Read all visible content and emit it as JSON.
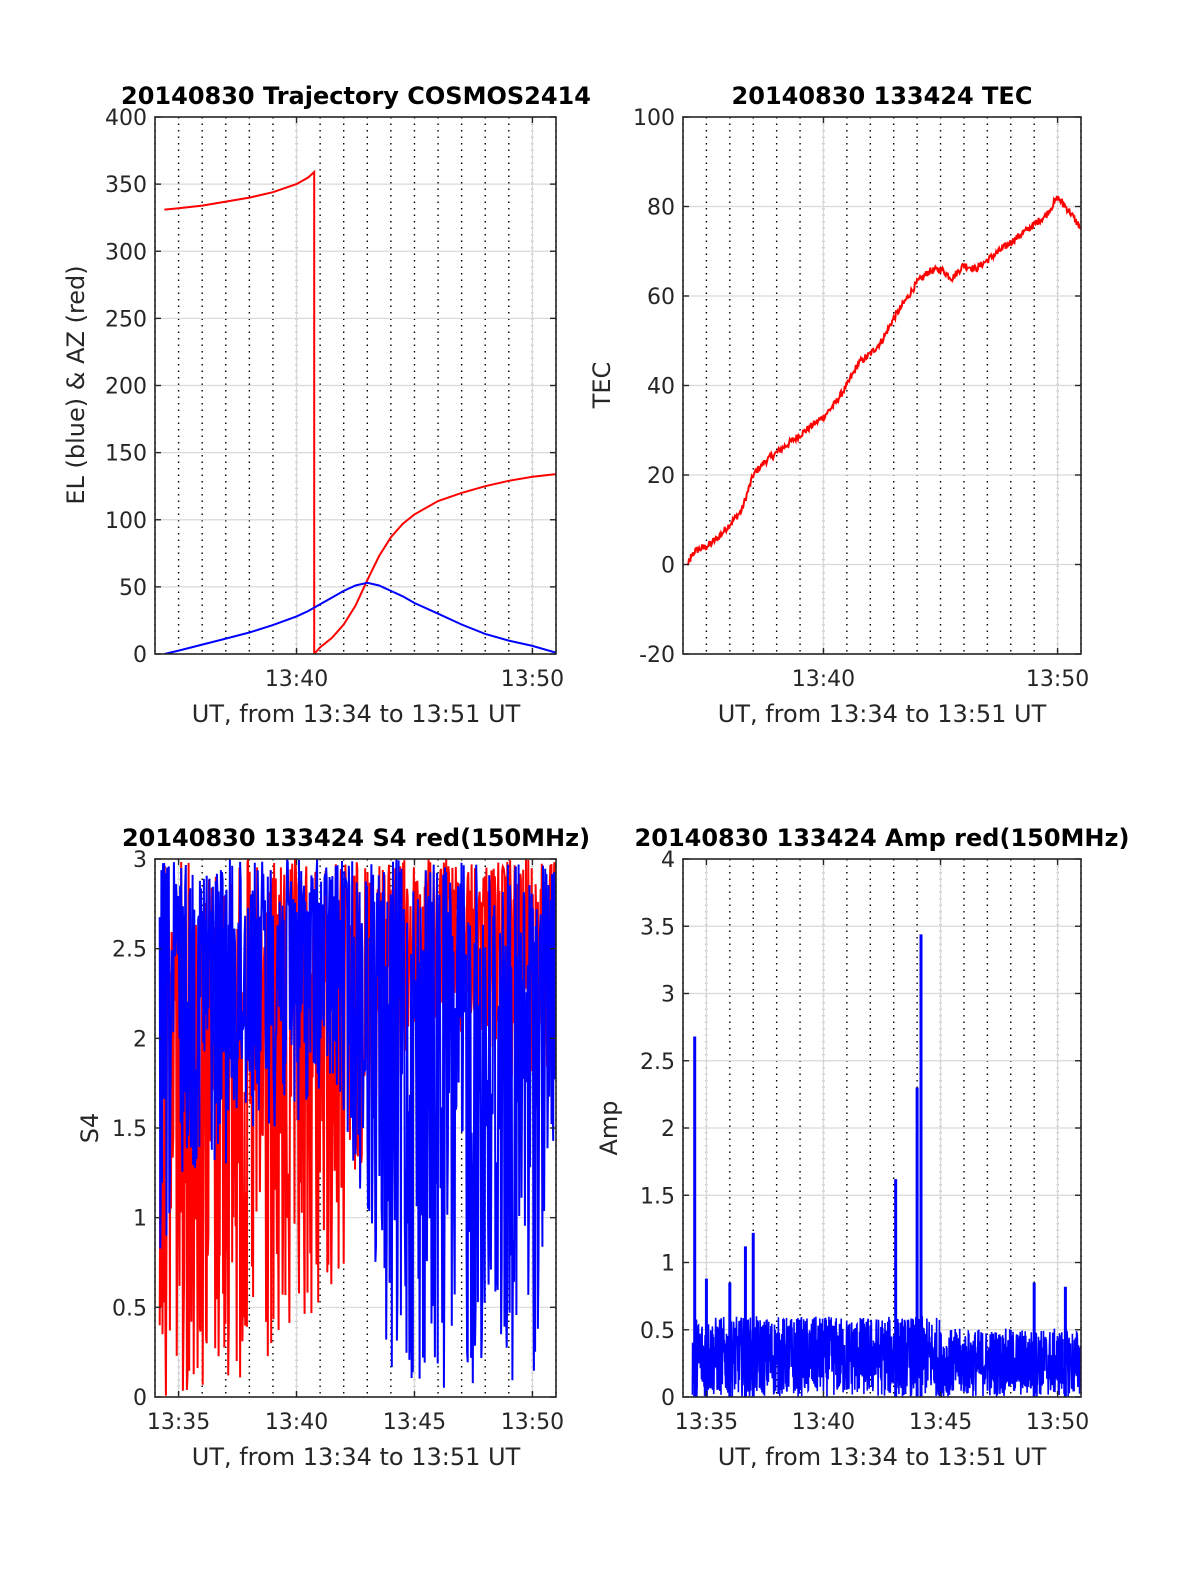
{
  "figure": {
    "background": "#ffffff",
    "colors": {
      "red": "#ff0000",
      "blue": "#0000ff",
      "grid": "#d9d9d9",
      "axis": "#262626"
    }
  },
  "chart_data": [
    {
      "id": "trajectory",
      "type": "line",
      "title": "20140830 Trajectory COSMOS2414",
      "xlabel": "UT, from 13:34 to 13:51 UT",
      "ylabel": "EL (blue) & AZ (red)",
      "xlim": [
        "13:34",
        "13:51"
      ],
      "ylim": [
        0,
        400
      ],
      "xticks": [
        "13:40",
        "13:50"
      ],
      "yticks": [
        0,
        50,
        100,
        150,
        200,
        250,
        300,
        350,
        400
      ],
      "grid": true,
      "x_minor_dotted_grid_min": 1,
      "series": [
        {
          "color": "#ff0000",
          "x": [
            "13:34:24",
            "13:35",
            "13:36",
            "13:37",
            "13:38",
            "13:39",
            "13:40",
            "13:40:30",
            "13:40:45",
            "13:40:45",
            "13:41",
            "13:41:30",
            "13:42",
            "13:42:30",
            "13:43",
            "13:43:30",
            "13:44",
            "13:44:30",
            "13:45",
            "13:46",
            "13:47",
            "13:48",
            "13:49",
            "13:50",
            "13:51"
          ],
          "y": [
            331,
            332,
            334,
            337,
            340,
            344,
            350,
            355,
            359,
            0,
            5,
            12,
            22,
            36,
            55,
            73,
            87,
            97,
            104,
            114,
            120,
            125,
            129,
            132,
            134
          ]
        },
        {
          "color": "#0000ff",
          "x": [
            "13:34:24",
            "13:35",
            "13:36",
            "13:37",
            "13:38",
            "13:39",
            "13:40",
            "13:40:30",
            "13:41",
            "13:41:30",
            "13:42",
            "13:42:30",
            "13:43",
            "13:43:30",
            "13:44",
            "13:44:30",
            "13:45",
            "13:46",
            "13:47",
            "13:48",
            "13:49",
            "13:50",
            "13:51"
          ],
          "y": [
            0,
            2.5,
            7,
            11.5,
            16,
            21.5,
            28,
            32,
            37,
            42,
            47,
            51,
            53,
            51,
            47,
            43,
            38,
            30,
            22,
            15,
            10,
            6,
            1
          ]
        }
      ]
    },
    {
      "id": "tec",
      "type": "line",
      "title": "20140830 133424 TEC",
      "xlabel": "UT, from 13:34 to 13:51 UT",
      "ylabel": "TEC",
      "xlim": [
        "13:34",
        "13:51"
      ],
      "ylim": [
        -20,
        100
      ],
      "xticks": [
        "13:40",
        "13:50"
      ],
      "yticks": [
        -20,
        0,
        20,
        40,
        60,
        80,
        100
      ],
      "grid": true,
      "x_minor_dotted_grid_min": 1,
      "series": [
        {
          "color": "#ff0000",
          "x": [
            "13:34:12",
            "13:34:30",
            "13:35",
            "13:35:30",
            "13:36",
            "13:36:30",
            "13:37",
            "13:37:30",
            "13:38",
            "13:38:30",
            "13:39",
            "13:39:30",
            "13:40",
            "13:40:30",
            "13:41",
            "13:41:30",
            "13:42",
            "13:42:30",
            "13:43",
            "13:43:30",
            "13:44",
            "13:44:30",
            "13:45",
            "13:45:30",
            "13:46",
            "13:46:30",
            "13:47",
            "13:47:30",
            "13:48",
            "13:48:30",
            "13:49",
            "13:49:30",
            "13:50",
            "13:50:30",
            "13:51"
          ],
          "y": [
            0,
            3,
            4,
            6,
            9,
            12,
            20,
            23,
            25,
            27,
            29,
            31,
            33,
            36,
            40,
            45,
            47,
            50,
            55,
            59,
            63,
            65.5,
            66,
            64,
            67,
            66,
            68,
            70,
            72,
            74,
            76,
            78,
            82,
            79,
            75
          ]
        }
      ]
    },
    {
      "id": "s4",
      "type": "line",
      "title": "20140830 133424 S4 red(150MHz)",
      "xlabel": "UT, from 13:34 to 13:51 UT",
      "ylabel": "S4",
      "xlim": [
        "13:34",
        "13:51"
      ],
      "ylim": [
        0,
        3
      ],
      "xticks": [
        "13:35",
        "13:40",
        "13:45",
        "13:50"
      ],
      "yticks": [
        0,
        0.5,
        1,
        1.5,
        2,
        2.5,
        3
      ],
      "grid": true,
      "x_minor_dotted_grid_min": 1,
      "series": [
        {
          "color": "#ff0000",
          "x": [
            "13:34:12",
            "13:35",
            "13:36",
            "13:37",
            "13:38",
            "13:39",
            "13:40",
            "13:41",
            "13:42",
            "13:43",
            "13:44",
            "13:45",
            "13:46",
            "13:47",
            "13:48",
            "13:49",
            "13:50",
            "13:51"
          ],
          "y_range": [
            [
              0,
              3
            ],
            [
              0,
              3
            ],
            [
              0,
              3
            ],
            [
              0,
              3
            ],
            [
              0,
              3
            ],
            [
              0,
              3
            ],
            [
              0,
              3
            ],
            [
              0.5,
              3
            ],
            [
              0.5,
              3
            ],
            [
              1.5,
              3
            ],
            [
              1.5,
              3
            ],
            [
              2,
              3
            ],
            [
              2,
              3
            ],
            [
              2,
              3
            ],
            [
              2,
              3
            ],
            [
              1.7,
              3
            ],
            [
              1.7,
              3
            ],
            [
              1.7,
              3
            ]
          ]
        },
        {
          "color": "#0000ff",
          "x": [
            "13:34:12",
            "13:35",
            "13:36",
            "13:37",
            "13:38",
            "13:39",
            "13:40",
            "13:41",
            "13:42",
            "13:43",
            "13:44",
            "13:45",
            "13:46",
            "13:47",
            "13:48",
            "13:49",
            "13:50",
            "13:51"
          ],
          "y_range": [
            [
              0.5,
              3
            ],
            [
              1.2,
              3
            ],
            [
              1.3,
              3
            ],
            [
              1.3,
              3
            ],
            [
              1.5,
              3
            ],
            [
              1.5,
              3
            ],
            [
              1.5,
              3
            ],
            [
              1.7,
              3
            ],
            [
              1.5,
              3
            ],
            [
              1,
              3
            ],
            [
              0,
              3
            ],
            [
              0,
              3
            ],
            [
              0,
              3
            ],
            [
              0,
              3
            ],
            [
              0,
              3
            ],
            [
              0,
              3
            ],
            [
              0,
              3
            ],
            [
              1.6,
              3
            ]
          ]
        }
      ]
    },
    {
      "id": "amp",
      "type": "line",
      "title": "20140830 133424 Amp red(150MHz)",
      "xlabel": "UT, from 13:34 to 13:51 UT",
      "ylabel": "Amp",
      "xlim": [
        "13:34",
        "13:51"
      ],
      "ylim": [
        0,
        4
      ],
      "xticks": [
        "13:35",
        "13:40",
        "13:45",
        "13:50"
      ],
      "yticks": [
        0,
        0.5,
        1,
        1.5,
        2,
        2.5,
        3,
        3.5,
        4
      ],
      "grid": true,
      "x_minor_dotted_grid_min": 1,
      "series": [
        {
          "color": "#0000ff",
          "baseline_range": [
            0,
            0.6
          ],
          "spikes": [
            {
              "x": "13:34:30",
              "y": 2.68
            },
            {
              "x": "13:35",
              "y": 0.88
            },
            {
              "x": "13:36",
              "y": 0.85
            },
            {
              "x": "13:36:40",
              "y": 1.12
            },
            {
              "x": "13:37",
              "y": 1.22
            },
            {
              "x": "13:43:05",
              "y": 1.62
            },
            {
              "x": "13:44",
              "y": 2.3
            },
            {
              "x": "13:44:10",
              "y": 3.44
            },
            {
              "x": "13:49",
              "y": 0.85
            },
            {
              "x": "13:50:20",
              "y": 0.82
            }
          ]
        }
      ]
    }
  ]
}
